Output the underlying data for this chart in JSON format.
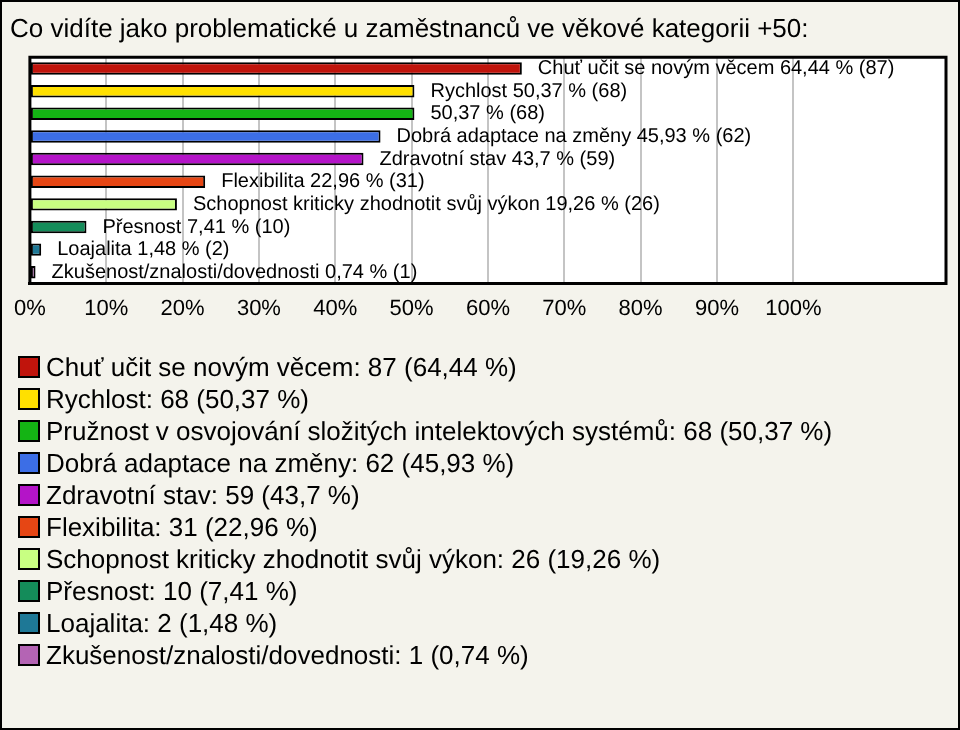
{
  "chart_data": {
    "type": "bar",
    "orientation": "horizontal",
    "title": "Co vidíte jako problematické u zaměstnanců ve věkové kategorii +50:",
    "categories": [
      null,
      null,
      null,
      null,
      null,
      null,
      null,
      null,
      null,
      null
    ],
    "values": [
      64.44,
      50.37,
      50.37,
      45.93,
      43.7,
      22.96,
      19.26,
      7.41,
      1.48,
      0.74
    ],
    "colors": [
      "#c0140c",
      "#ffe000",
      "#14b414",
      "#3c6ee6",
      "#b414c8",
      "#e64614",
      "#c8ff82",
      "#148c5a",
      "#1e7896",
      "#b464b4"
    ],
    "value_labels": [
      "Chuť učit se novým věcem 64,44 % (87)",
      "Rychlost 50,37 % (68)",
      "50,37 % (68)",
      "Dobrá adaptace na změny 45,93 % (62)",
      "Zdravotní stav 43,7 % (59)",
      "Flexibilita 22,96 % (31)",
      "Schopnost kriticky zhodnotit svůj výkon 19,26 % (26)",
      "Přesnost 7,41 % (10)",
      "Loajalita 1,48 % (2)",
      "Zkušenost/znalosti/dovednosti 0,74 % (1)"
    ],
    "annotations": [
      "Chuť učit se novým věcem: 87 (64,44 %)",
      "Rychlost: 68 (50,37 %)",
      "Pružnost v osvojování složitých intelektových systémů: 68 (50,37 %)",
      "Dobrá adaptace na změny: 62 (45,93 %)",
      "Zdravotní stav: 59 (43,7 %)",
      "Flexibilita: 31 (22,96 %)",
      "Schopnost kriticky zhodnotit svůj výkon: 26 (19,26 %)",
      "Přesnost: 10 (7,41 %)",
      "Loajalita: 2 (1,48 %)",
      "Zkušenost/znalosti/dovednosti: 1 (0,74 %)"
    ],
    "xlim": [
      0,
      120
    ],
    "xticks": [
      {
        "value": 0,
        "label": "0%"
      },
      {
        "value": 10,
        "label": "10%"
      },
      {
        "value": 20,
        "label": "20%"
      },
      {
        "value": 30,
        "label": "30%"
      },
      {
        "value": 40,
        "label": "40%"
      },
      {
        "value": 50,
        "label": "50%"
      },
      {
        "value": 60,
        "label": "60%"
      },
      {
        "value": 70,
        "label": "70%"
      },
      {
        "value": 80,
        "label": "80%"
      },
      {
        "value": 90,
        "label": "90%"
      },
      {
        "value": 100,
        "label": "100%"
      }
    ],
    "grid": "x",
    "tick_labels": "x"
  }
}
